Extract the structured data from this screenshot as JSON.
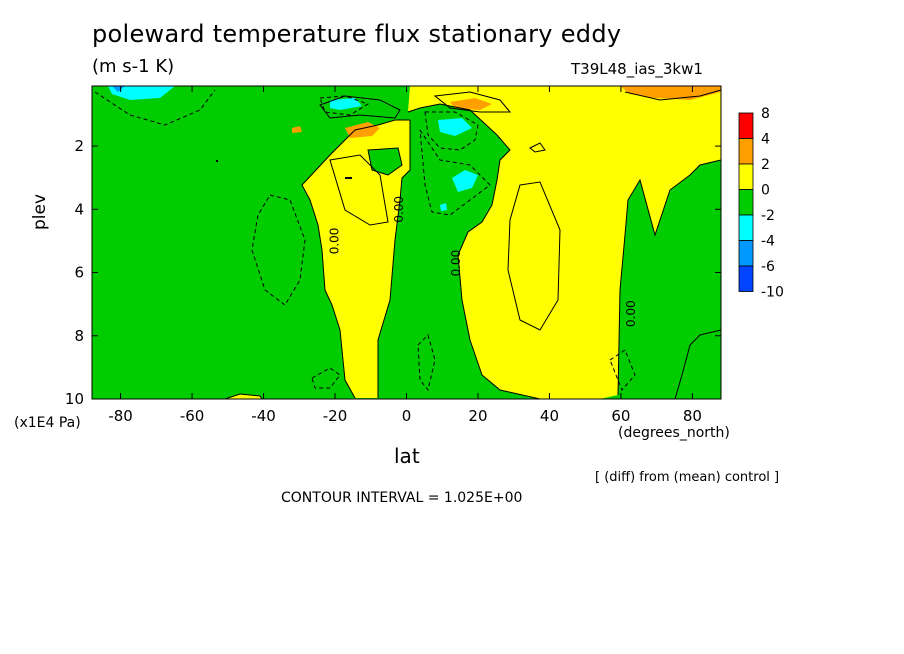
{
  "title": "poleward temperature flux stationary eddy",
  "units": "(m s-1 K)",
  "run_id": "T39L48_ias_3kw1",
  "xlabel": "lat",
  "ylabel": "plev",
  "y_unit": "(x1E4 Pa)",
  "x_unit": "(degrees_north)",
  "diff_note": "[ (diff) from (mean) control ]",
  "contour_interval": "CONTOUR INTERVAL = 1.025E+00",
  "chart_data": {
    "type": "heatmap",
    "title": "poleward temperature flux stationary eddy",
    "xlabel": "lat",
    "ylabel": "plev",
    "xlim": [
      -88,
      88
    ],
    "ylim": [
      10,
      0.1
    ],
    "x_ticks": [
      -80,
      -60,
      -40,
      -20,
      0,
      20,
      40,
      60,
      80
    ],
    "y_ticks": [
      2,
      4,
      6,
      8,
      10
    ],
    "contour_labels": [
      {
        "text": "0.00",
        "x": -19,
        "y": 5.0
      },
      {
        "text": "0.00",
        "x": -1,
        "y": 4.0
      },
      {
        "text": "0.00",
        "x": 15,
        "y": 5.7
      },
      {
        "text": "0.00",
        "x": 64,
        "y": 7.3
      }
    ],
    "colorbar": {
      "levels": [
        "8",
        "4",
        "2",
        "0",
        "-2",
        "-4",
        "-6",
        "-10"
      ],
      "colors": [
        "#ff0000",
        "#ff9f00",
        "#ffff00",
        "#00cc00",
        "#00ffff",
        "#0099ff",
        "#0044ff"
      ]
    },
    "regions": [
      {
        "level": "0 to 2",
        "color": "#ffff00",
        "x": [
          -25,
          -3
        ],
        "y": [
          2.5,
          9.8
        ]
      },
      {
        "level": "0 to 2",
        "color": "#ffff00",
        "x": [
          -11,
          1
        ],
        "y": [
          1.2,
          2.4
        ]
      },
      {
        "level": "0 to 2",
        "color": "#ffff00",
        "x": [
          0,
          88
        ],
        "y": [
          0.1,
          1.2
        ]
      },
      {
        "level": "0 to 2",
        "color": "#ffff00",
        "x": [
          19,
          67
        ],
        "y": [
          1.2,
          10
        ]
      },
      {
        "level": "0 to 2",
        "color": "#ffff00",
        "x": [
          67,
          88
        ],
        "y": [
          1.2,
          6
        ]
      },
      {
        "level": "-2 to 0",
        "color": "#00cc00",
        "x": [
          -88,
          -25
        ],
        "y": [
          0.1,
          10
        ]
      },
      {
        "level": "-2 to 0",
        "color": "#00cc00",
        "x": [
          -3,
          19
        ],
        "y": [
          1.0,
          10
        ]
      },
      {
        "level": "-2 to 0",
        "color": "#00cc00",
        "x": [
          67,
          88
        ],
        "y": [
          3,
          10
        ]
      },
      {
        "level": "2 to 4",
        "color": "#ff9f00",
        "x": [
          -17,
          -10
        ],
        "y": [
          1.1,
          1.6
        ]
      },
      {
        "level": "2 to 4",
        "color": "#ff9f00",
        "x": [
          13,
          24
        ],
        "y": [
          0.4,
          0.8
        ]
      },
      {
        "level": "2 to 4",
        "color": "#ff9f00",
        "x": [
          63,
          87
        ],
        "y": [
          0.1,
          0.4
        ]
      },
      {
        "level": "-4 to -2",
        "color": "#00ffff",
        "x": [
          -83,
          -65
        ],
        "y": [
          0.1,
          0.6
        ]
      },
      {
        "level": "-4 to -2",
        "color": "#00ffff",
        "x": [
          -21,
          -13
        ],
        "y": [
          0.4,
          0.8
        ]
      },
      {
        "level": "-4 to -2",
        "color": "#00ffff",
        "x": [
          9,
          19
        ],
        "y": [
          1.0,
          1.4
        ]
      },
      {
        "level": "-4 to -2",
        "color": "#00ffff",
        "x": [
          13,
          20
        ],
        "y": [
          2.8,
          3.5
        ]
      },
      {
        "level": "-6 to -4",
        "color": "#0099ff",
        "x": [
          -83,
          -79
        ],
        "y": [
          0.1,
          0.4
        ]
      }
    ]
  }
}
